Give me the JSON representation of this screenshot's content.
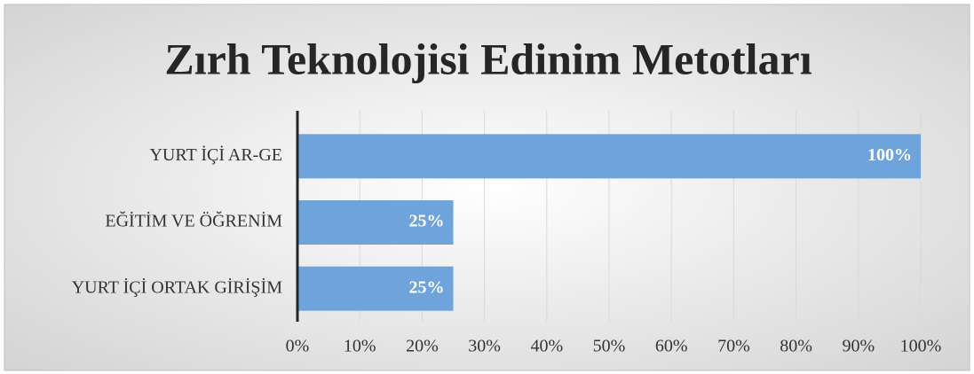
{
  "chart_data": {
    "type": "hbar",
    "title": "Zırh Teknolojisi Edinim Metotları",
    "categories": [
      "YURT İÇİ AR-GE",
      "EĞİTİM VE ÖĞRENİM",
      "YURT İÇİ ORTAK GİRİŞİM"
    ],
    "values": [
      100,
      25,
      25
    ],
    "value_labels": [
      "100%",
      "25%",
      "25%"
    ],
    "color": "#6fa3dc",
    "xlim": [
      0,
      100
    ],
    "xticks": [
      {
        "value": 0,
        "label": "0%"
      },
      {
        "value": 10,
        "label": "10%"
      },
      {
        "value": 20,
        "label": "20%"
      },
      {
        "value": 30,
        "label": "30%"
      },
      {
        "value": 40,
        "label": "40%"
      },
      {
        "value": 50,
        "label": "50%"
      },
      {
        "value": 60,
        "label": "60%"
      },
      {
        "value": 70,
        "label": "70%"
      },
      {
        "value": 80,
        "label": "80%"
      },
      {
        "value": 90,
        "label": "90%"
      },
      {
        "value": 100,
        "label": "100%"
      }
    ],
    "grid": true
  }
}
